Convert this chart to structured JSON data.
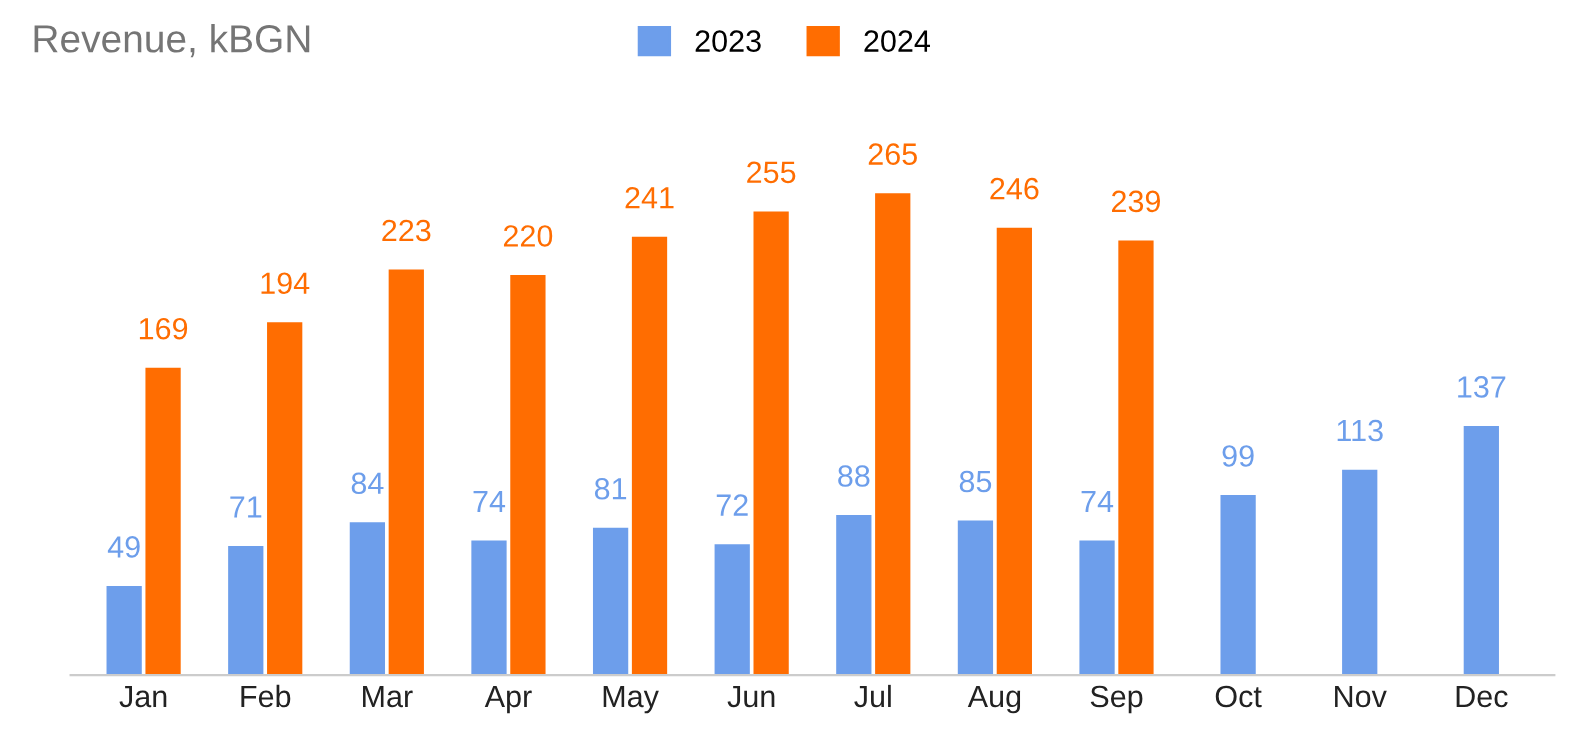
{
  "chart_data": {
    "type": "bar",
    "title": "Revenue, kBGN",
    "categories": [
      "Jan",
      "Feb",
      "Mar",
      "Apr",
      "May",
      "Jun",
      "Jul",
      "Aug",
      "Sep",
      "Oct",
      "Nov",
      "Dec"
    ],
    "series": [
      {
        "name": "2023",
        "color": "#6d9eeb",
        "values": [
          49,
          71,
          84,
          74,
          81,
          72,
          88,
          85,
          74,
          99,
          113,
          137
        ]
      },
      {
        "name": "2024",
        "color": "#ff6d01",
        "values": [
          169,
          194,
          223,
          220,
          241,
          255,
          265,
          246,
          239,
          null,
          null,
          null
        ]
      }
    ],
    "data_labels": true,
    "legend": "top",
    "grid": false,
    "tick_labels": "x"
  }
}
